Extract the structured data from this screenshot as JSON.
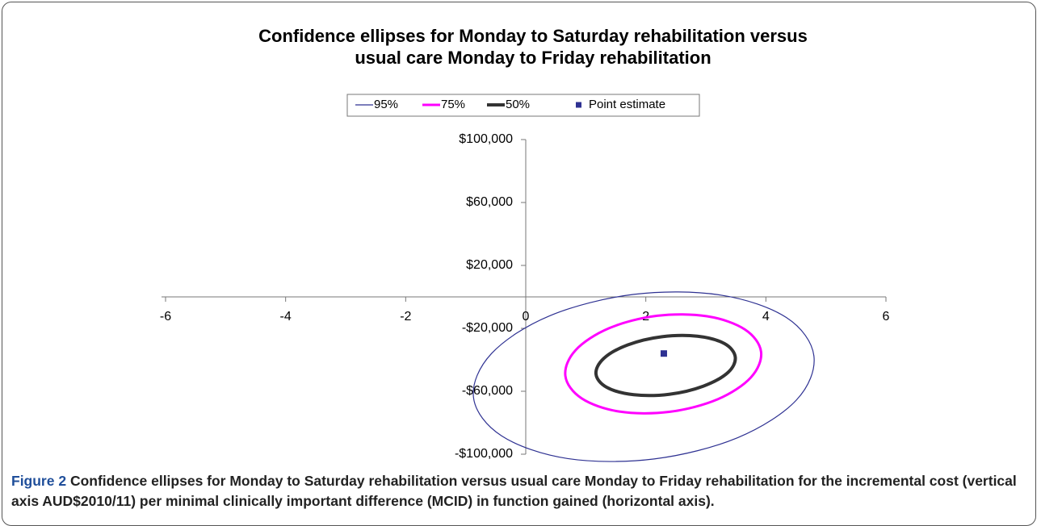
{
  "chart_data": {
    "type": "scatter",
    "title": [
      "Confidence ellipses for Monday to Saturday rehabilitation versus",
      "usual care Monday to Friday rehabilitation"
    ],
    "series": [
      {
        "name": "95%",
        "mode": "line",
        "color": "#2e3192",
        "width": 1.2,
        "x": [
          4.8,
          4.51,
          3.53,
          2.14,
          0.7,
          -0.4,
          -0.87,
          -0.57,
          0.4,
          1.8,
          3.24,
          4.34
        ],
        "y": [
          -37500,
          -65500,
          -89500,
          -103000,
          -102800,
          -88400,
          -64000,
          -36000,
          -12000,
          1600,
          1200,
          -13100
        ]
      },
      {
        "name": "75%",
        "mode": "line",
        "color": "#ff00ff",
        "width": 3,
        "x": [
          3.92,
          3.75,
          3.19,
          2.39,
          1.56,
          0.93,
          0.66,
          0.83,
          1.39,
          2.19,
          3.02,
          3.65
        ],
        "y": [
          -34900,
          -51200,
          -65200,
          -73100,
          -72900,
          -64500,
          -50200,
          -33900,
          -19900,
          -12000,
          -12300,
          -20700
        ]
      },
      {
        "name": "50%",
        "mode": "line",
        "color": "#333333",
        "width": 4,
        "x": [
          3.49,
          3.37,
          2.96,
          2.39,
          1.8,
          1.35,
          1.17,
          1.3,
          1.7,
          2.27,
          2.86,
          3.31
        ],
        "y": [
          -38200,
          -48000,
          -56700,
          -61900,
          -62200,
          -57500,
          -49000,
          -39100,
          -30500,
          -25300,
          -25000,
          -29700
        ]
      },
      {
        "name": "Point estimate",
        "mode": "marker",
        "color": "#2e3192",
        "x": [
          2.3
        ],
        "y": [
          -36000
        ]
      }
    ],
    "xlim": [
      -6,
      6
    ],
    "xticks": [
      -6,
      -4,
      -2,
      0,
      2,
      4,
      6
    ],
    "ylim": [
      -100000,
      100000
    ],
    "yticks": [
      {
        "value": 100000,
        "label": "$100,000"
      },
      {
        "value": 60000,
        "label": "$60,000"
      },
      {
        "value": 20000,
        "label": "$20,000"
      },
      {
        "value": -20000,
        "label": "-$20,000"
      },
      {
        "value": -60000,
        "label": "-$60,000"
      },
      {
        "value": -100000,
        "label": "-$100,000"
      }
    ],
    "legend": "top"
  },
  "caption": {
    "label": "Figure 2",
    "text": "Confidence ellipses for Monday to Saturday rehabilitation versus usual care Monday to Friday rehabilitation for the incremental cost (vertical axis AUD$2010/11) per minimal clinically important difference (MCID) in function gained (horizontal axis)."
  }
}
